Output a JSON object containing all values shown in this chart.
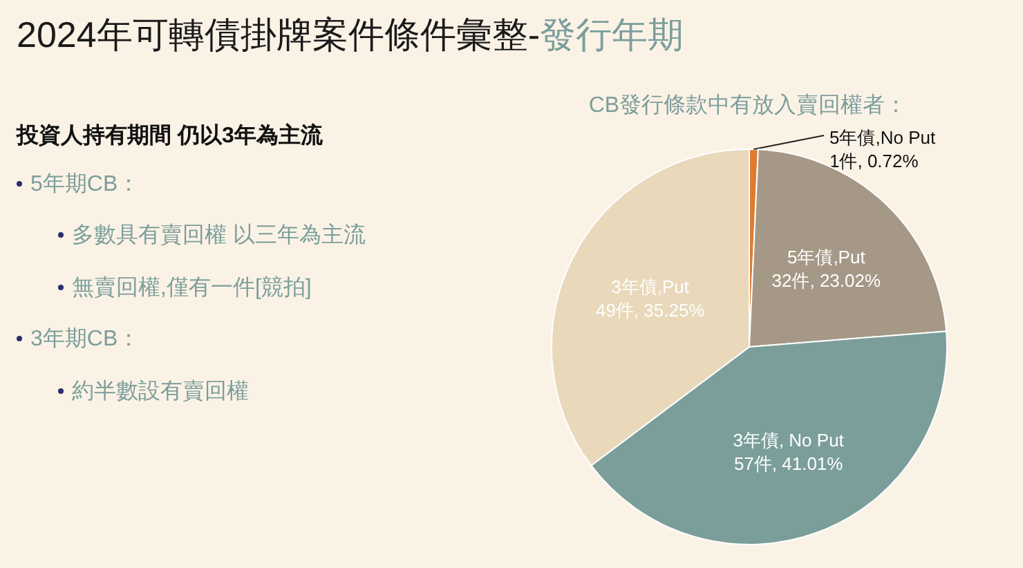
{
  "chart_data": {
    "type": "pie",
    "title": "2024年可轉債掛牌案件條件彙整-",
    "subtitle": "發行年期",
    "annotations": [
      "CB發行條款中有放入賣回權者：",
      "投資人持有期間 仍以3年為主流",
      "5年期CB：",
      "多數具有賣回權 以三年為主流",
      "無賣回權,僅有一件[競拍]",
      "3年期CB：",
      "約半數設有賣回權"
    ],
    "categories": [
      "5年債,No Put",
      "5年債,Put",
      "3年債, No Put",
      "3年債,Put"
    ],
    "values": [
      0.72,
      23.02,
      41.01,
      35.25
    ],
    "value_labels": [
      "1件, 0.72%",
      "32件, 23.02%",
      "57件, 41.01%",
      "49件, 35.25%"
    ],
    "colors": [
      "#e07b2e",
      "#a69886",
      "#7b9e9b",
      "#e9d8ba"
    ]
  }
}
